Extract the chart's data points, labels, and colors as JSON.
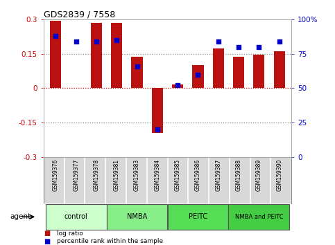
{
  "title": "GDS2839 / 7558",
  "samples": [
    "GSM159376",
    "GSM159377",
    "GSM159378",
    "GSM159381",
    "GSM159383",
    "GSM159384",
    "GSM159385",
    "GSM159386",
    "GSM159387",
    "GSM159388",
    "GSM159389",
    "GSM159390"
  ],
  "log_ratio": [
    0.295,
    0.0,
    0.285,
    0.285,
    0.138,
    -0.195,
    0.015,
    0.1,
    0.175,
    0.138,
    0.147,
    0.163
  ],
  "pct_rank": [
    88,
    84,
    84,
    85,
    66,
    20,
    52,
    60,
    84,
    80,
    80,
    84
  ],
  "bar_color": "#bb1111",
  "dot_color": "#0000cc",
  "ylim_left": [
    -0.3,
    0.3
  ],
  "ylim_right": [
    0,
    100
  ],
  "yticks_left": [
    -0.3,
    -0.15,
    0.0,
    0.15,
    0.3
  ],
  "ytick_labels_left": [
    "-0.3",
    "-0.15",
    "0",
    "0.15",
    "0.3"
  ],
  "yticks_right": [
    0,
    25,
    50,
    75,
    100
  ],
  "ytick_labels_right": [
    "0",
    "25",
    "50",
    "75",
    "100%"
  ],
  "groups": [
    {
      "label": "control",
      "start": 0,
      "end": 3,
      "color": "#ccffcc"
    },
    {
      "label": "NMBA",
      "start": 3,
      "end": 6,
      "color": "#88ee88"
    },
    {
      "label": "PEITC",
      "start": 6,
      "end": 9,
      "color": "#55dd55"
    },
    {
      "label": "NMBA and PEITC",
      "start": 9,
      "end": 12,
      "color": "#44cc44"
    }
  ],
  "legend_items": [
    {
      "label": "log ratio",
      "color": "#bb1111"
    },
    {
      "label": "percentile rank within the sample",
      "color": "#0000cc"
    }
  ],
  "agent_label": "agent",
  "background_color": "#ffffff",
  "tick_area_color": "#d8d8d8",
  "bar_width": 0.55
}
